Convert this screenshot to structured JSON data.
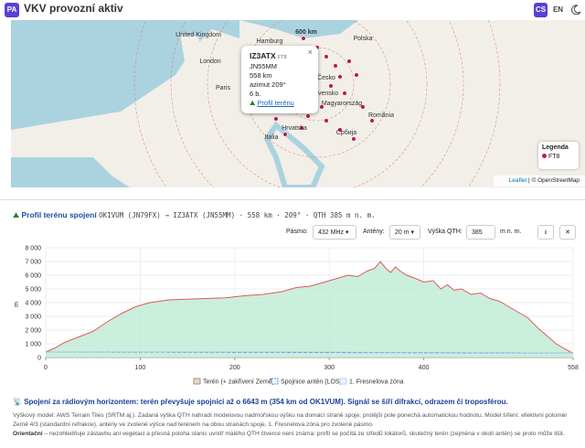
{
  "header": {
    "logo": "PA",
    "title": "VKV provozní aktiv",
    "lang": [
      "CS",
      "EN"
    ]
  },
  "map": {
    "labels": [
      "United Kingdom",
      "Hamburg",
      "London",
      "Paris",
      "Polska",
      "Česko",
      "Slovensko",
      "Magyarország",
      "România",
      "Hrvatska",
      "Србија",
      "Italia",
      "600 km"
    ],
    "attribution": [
      "Leaflet",
      "| © OpenStreetMap"
    ]
  },
  "popup": {
    "call": "IZ3ATX",
    "mode": "FT8",
    "locator": "JN55MM",
    "distance": "558 km",
    "azimuth": "azimut 209°",
    "points": "6 b.",
    "link": "Profil terénu"
  },
  "map_legend": {
    "title": "Legenda",
    "item": "FT8"
  },
  "panel": {
    "title": "Profil terénu spojení",
    "subtitle": "OK1VUM (JN79FX) → IZ3ATX (JN55MM) · 558 km · 209° · QTH 385 m n. m.",
    "controls": {
      "band_label": "Pásmo:",
      "band": "432 MHz",
      "ant_label": "Antény:",
      "ant": "20 m",
      "qth_label": "Výška QTH:",
      "qth": "385",
      "unit": "m n. m."
    },
    "result": "Spojení za rádiovým horizontem: terén převyšuje spojnici až o 6643 m (354 km od OK1VUM). Signál se šíří difrakcí, odrazem či troposférou.",
    "note": "Výškový model: AWS Terrain Tiles (SRTM aj.). Zadaná výška QTH nahradí modelovou nadmořskou výšku na domácí straně spoje; protější pole ponechá automatickou hodnotu. Model šíření: efektivní poloměr Země 4/3 (standardní refrakce), antény ve zvolené výšce nad terénem na obou stranách spoje, 1. Fresnelova zóna pro zvolené pásmo.",
    "caveat_title": "Orientační",
    "caveat": " – nezohledňuje zástavbu ani vegetaci a přesná poloha stanic uvnitř malého QTH čtverce není známa: profil se počítá ze středů lokátorů, skutečný terén (zejména v okolí antén) se proto může lišit."
  },
  "chart_data": {
    "type": "area",
    "ylabel": "m",
    "xlim": [
      0,
      558
    ],
    "xticks": [
      0,
      100,
      200,
      300,
      400,
      558
    ],
    "ylim": [
      0,
      8000
    ],
    "yticks": [
      0,
      {
        "value": 1000,
        "label": "1 000"
      },
      {
        "value": 2000,
        "label": "2 000"
      },
      {
        "value": 3000,
        "label": "3 000"
      },
      {
        "value": 4000,
        "label": "4 000"
      },
      {
        "value": 5000,
        "label": "5 000"
      },
      {
        "value": 6000,
        "label": "6 000"
      },
      {
        "value": 7000,
        "label": "7 000"
      },
      {
        "value": 8000,
        "label": "8 000"
      }
    ],
    "grid": true,
    "series": [
      {
        "name": "Terén (+ zakřivení Země)",
        "color": "#e05a5a",
        "fill": "#bdebd3",
        "x": [
          0,
          10,
          20,
          35,
          50,
          65,
          80,
          95,
          110,
          130,
          150,
          170,
          190,
          210,
          230,
          250,
          265,
          280,
          295,
          310,
          320,
          330,
          340,
          348,
          354,
          360,
          365,
          370,
          375,
          382,
          390,
          400,
          410,
          418,
          425,
          432,
          440,
          450,
          460,
          470,
          480,
          490,
          500,
          510,
          520,
          530,
          540,
          550,
          558
        ],
        "values": [
          400,
          700,
          1100,
          1500,
          1900,
          2600,
          3200,
          3700,
          4000,
          4200,
          4250,
          4300,
          4350,
          4500,
          4600,
          4800,
          5100,
          5200,
          5500,
          5800,
          6000,
          5900,
          6300,
          6500,
          7000,
          6500,
          6200,
          6600,
          6300,
          6000,
          5800,
          5500,
          5600,
          5000,
          5300,
          4900,
          5000,
          4600,
          4700,
          4300,
          4100,
          3700,
          3300,
          2900,
          2200,
          1600,
          1000,
          600,
          300
        ]
      },
      {
        "name": "Spojnice antén (LOS)",
        "color": "#3a6fd8",
        "x": [
          0,
          558
        ],
        "values": [
          405,
          330
        ]
      },
      {
        "name": "1. Fresnelova zóna",
        "color": "#a8c8f0",
        "x": [
          0,
          279,
          558
        ],
        "values": [
          405,
          395,
          330
        ]
      }
    ]
  }
}
